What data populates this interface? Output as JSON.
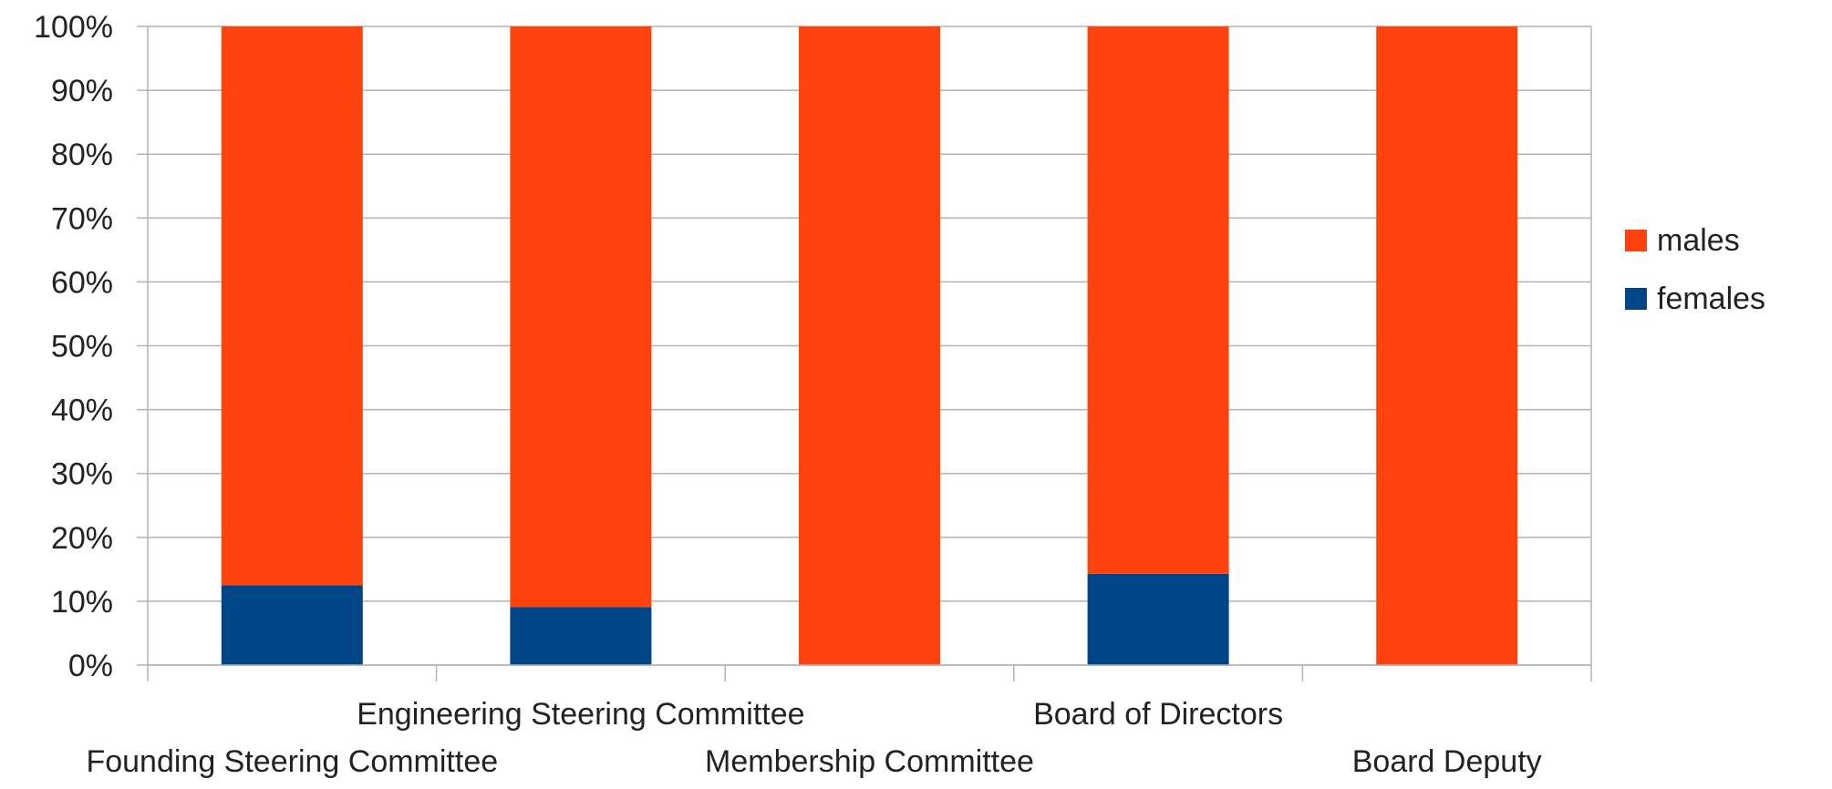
{
  "chart_data": {
    "type": "bar",
    "stacked": true,
    "percent": true,
    "title": "",
    "xlabel": "",
    "ylabel": "",
    "categories": [
      "Founding Steering Committee",
      "Engineering Steering Committee",
      "Membership Committee",
      "Board of Directors",
      "Board Deputy"
    ],
    "series": [
      {
        "name": "females",
        "color": "#004586",
        "values": [
          12.5,
          9.1,
          0,
          14.3,
          0
        ]
      },
      {
        "name": "males",
        "color": "#ff420e",
        "values": [
          87.5,
          90.9,
          100,
          85.7,
          100
        ]
      }
    ],
    "ylim": [
      0,
      100
    ],
    "yticks": [
      "0%",
      "10%",
      "20%",
      "30%",
      "40%",
      "50%",
      "60%",
      "70%",
      "80%",
      "90%",
      "100%"
    ],
    "grid": true,
    "legend": {
      "position": "right",
      "entries": [
        {
          "label": "males",
          "color": "#ff420e"
        },
        {
          "label": "females",
          "color": "#004586"
        }
      ]
    }
  }
}
